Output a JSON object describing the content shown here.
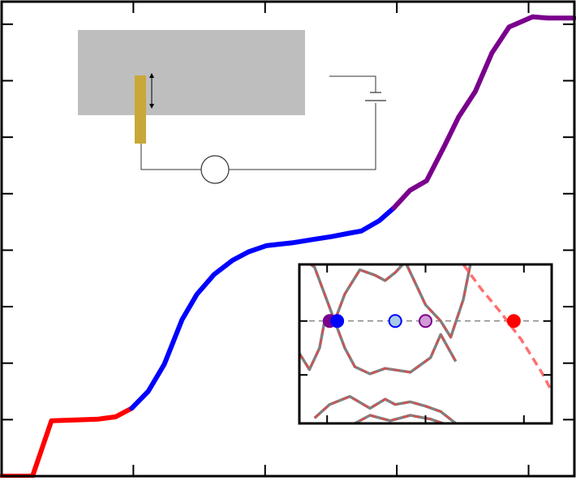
{
  "chart_data": [
    {
      "type": "line",
      "title": "",
      "xlabel": "",
      "ylabel": "",
      "xlim": [
        0,
        100
      ],
      "ylim": [
        0,
        8.4
      ],
      "x_ticks": [
        23,
        46,
        69,
        92
      ],
      "y_ticks": [
        1,
        2,
        3,
        4,
        5,
        6,
        7,
        8
      ],
      "grid": false,
      "series": [
        {
          "color": "#ff0000",
          "x": [
            0,
            5.4,
            8.7,
            14.4,
            16.9,
            19.9,
            22.7
          ],
          "y": [
            0,
            0,
            0.98,
            1.0,
            1.01,
            1.05,
            1.2
          ]
        },
        {
          "color": "#0000ff",
          "x": [
            22.7,
            25.6,
            28.4,
            31.5,
            34.1,
            37.1,
            40.3,
            43.1,
            46.2,
            50.7,
            54.4,
            57.6,
            60.7,
            62.8,
            65.9,
            68.5
          ],
          "y": [
            1.2,
            1.5,
            1.98,
            2.77,
            3.22,
            3.57,
            3.82,
            3.97,
            4.08,
            4.13,
            4.19,
            4.24,
            4.3,
            4.34,
            4.52,
            4.75
          ]
        },
        {
          "color": "#7a008c",
          "x": [
            68.5,
            71.3,
            74.2,
            77.3,
            79.8,
            82.7,
            85.6,
            88.6,
            92.7,
            95.4,
            98.2,
            100
          ],
          "y": [
            4.75,
            5.06,
            5.23,
            5.84,
            6.36,
            6.81,
            7.49,
            7.95,
            8.13,
            8.11,
            8.11,
            8.11
          ]
        }
      ]
    },
    {
      "type": "line",
      "title": "",
      "xlabel": "",
      "ylabel": "",
      "xlim": [
        0,
        100
      ],
      "ylim": [
        -1.9,
        1.05
      ],
      "x_ticks": [
        11,
        50,
        89
      ],
      "y_ticks": [
        -1,
        0
      ],
      "grid": false,
      "series": [
        {
          "color": "#808080",
          "style": "solid+red-dash",
          "x": [
            0,
            6,
            10,
            14,
            18,
            24,
            30
          ],
          "y": [
            1.2,
            1.0,
            0.5,
            0.0,
            0.5,
            0.95,
            0.85
          ]
        },
        {
          "color": "#808080",
          "style": "solid+red-dash",
          "x": [
            14,
            18,
            22,
            28,
            34,
            44,
            52,
            56,
            62
          ],
          "y": [
            0.0,
            -0.5,
            -0.85,
            -0.98,
            -0.88,
            -0.95,
            -0.68,
            -0.25,
            -0.75
          ]
        },
        {
          "color": "#808080",
          "style": "solid+red-dash",
          "x": [
            0,
            4,
            8,
            10,
            14
          ],
          "y": [
            -0.6,
            -0.9,
            -0.5,
            0.0,
            0.0
          ]
        },
        {
          "color": "#808080",
          "style": "solid+red-dash",
          "x": [
            30,
            34,
            38,
            42,
            46,
            50,
            56,
            60,
            65,
            68
          ],
          "y": [
            0.85,
            0.75,
            0.9,
            1.1,
            0.7,
            0.3,
            0.0,
            -0.3,
            0.4,
            1.1
          ]
        },
        {
          "color": "#808080",
          "style": "solid+red-dash",
          "x": [
            6,
            12,
            20,
            28,
            34,
            38,
            44,
            50,
            56,
            62
          ],
          "y": [
            -1.8,
            -1.55,
            -1.4,
            -1.62,
            -1.45,
            -1.55,
            -1.5,
            -1.58,
            -1.68,
            -1.9
          ]
        },
        {
          "color": "#808080",
          "style": "solid+red-dash",
          "x": [
            20,
            28,
            36,
            44,
            52,
            60
          ],
          "y": [
            -1.95,
            -1.75,
            -1.85,
            -1.75,
            -1.82,
            -1.95
          ]
        },
        {
          "color": "#ff7070",
          "style": "dashed",
          "x": [
            65,
            72,
            80,
            88,
            96,
            100
          ],
          "y": [
            1.05,
            0.6,
            0.15,
            -0.35,
            -0.95,
            -1.3
          ]
        }
      ],
      "reference_line": {
        "y": 0,
        "color": "#555555",
        "style": "dashed"
      },
      "markers": [
        {
          "x": 12,
          "y": 0,
          "fill": "#7a008c",
          "stroke": "#7a008c"
        },
        {
          "x": 15,
          "y": 0,
          "fill": "#0000ff",
          "stroke": "#0000ff"
        },
        {
          "x": 38,
          "y": 0,
          "fill": "#a8cce8",
          "stroke": "#0000ff"
        },
        {
          "x": 50,
          "y": 0,
          "fill": "#d39ad8",
          "stroke": "#7a008c"
        },
        {
          "x": 85,
          "y": 0,
          "fill": "#ff0000",
          "stroke": "#ff0000"
        }
      ]
    }
  ],
  "schematic": {
    "slab_color": "#bebebe",
    "probe_color": "#c8a838",
    "wire_color": "#333333"
  }
}
